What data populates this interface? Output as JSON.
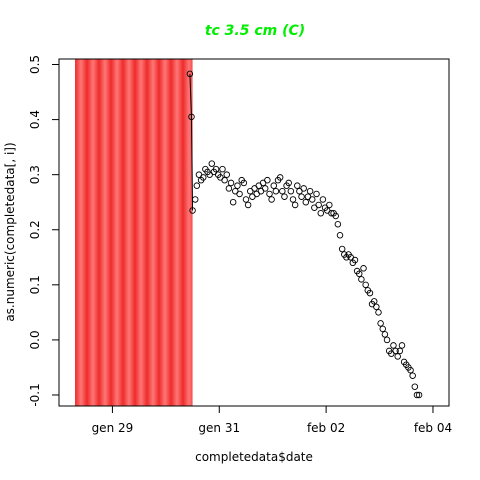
{
  "chart_data": {
    "type": "scatter",
    "title": "tc 3.5 cm (C)",
    "xlabel": "completedata$date",
    "ylabel": "as.numeric(completedata[, i])",
    "x_ticks": [
      "gen 29",
      "gen 31",
      "feb 02",
      "feb 04"
    ],
    "y_ticks": [
      "-0.1",
      "0.0",
      "0.1",
      "0.2",
      "0.3",
      "0.4",
      "0.5"
    ],
    "xlim_days": [
      28.0,
      35.3
    ],
    "ylim": [
      -0.12,
      0.51
    ],
    "shaded_region": {
      "from_day": 28.3,
      "to_day": 30.5,
      "color": "#ff3333"
    },
    "colors": {
      "title": "#00ee00",
      "points": "#000000",
      "band_light": "#ff7777",
      "band_dark": "#ee2b2b"
    },
    "marker": "open-circle",
    "grid": false,
    "points": [
      [
        30.45,
        0.483
      ],
      [
        30.48,
        0.405
      ],
      [
        30.5,
        0.235
      ],
      [
        30.55,
        0.255
      ],
      [
        30.58,
        0.28
      ],
      [
        30.62,
        0.3
      ],
      [
        30.66,
        0.29
      ],
      [
        30.7,
        0.295
      ],
      [
        30.74,
        0.31
      ],
      [
        30.78,
        0.305
      ],
      [
        30.82,
        0.3
      ],
      [
        30.86,
        0.32
      ],
      [
        30.9,
        0.305
      ],
      [
        30.94,
        0.31
      ],
      [
        30.98,
        0.3
      ],
      [
        31.02,
        0.295
      ],
      [
        31.06,
        0.31
      ],
      [
        31.1,
        0.29
      ],
      [
        31.14,
        0.3
      ],
      [
        31.18,
        0.275
      ],
      [
        31.22,
        0.285
      ],
      [
        31.26,
        0.25
      ],
      [
        31.3,
        0.27
      ],
      [
        31.34,
        0.28
      ],
      [
        31.38,
        0.265
      ],
      [
        31.42,
        0.29
      ],
      [
        31.46,
        0.285
      ],
      [
        31.5,
        0.255
      ],
      [
        31.54,
        0.245
      ],
      [
        31.58,
        0.27
      ],
      [
        31.62,
        0.26
      ],
      [
        31.66,
        0.275
      ],
      [
        31.7,
        0.265
      ],
      [
        31.74,
        0.28
      ],
      [
        31.78,
        0.27
      ],
      [
        31.82,
        0.285
      ],
      [
        31.86,
        0.275
      ],
      [
        31.9,
        0.29
      ],
      [
        31.94,
        0.265
      ],
      [
        31.98,
        0.255
      ],
      [
        32.02,
        0.28
      ],
      [
        32.06,
        0.27
      ],
      [
        32.1,
        0.29
      ],
      [
        32.14,
        0.295
      ],
      [
        32.18,
        0.27
      ],
      [
        32.22,
        0.26
      ],
      [
        32.26,
        0.28
      ],
      [
        32.3,
        0.285
      ],
      [
        32.34,
        0.27
      ],
      [
        32.38,
        0.255
      ],
      [
        32.42,
        0.245
      ],
      [
        32.46,
        0.28
      ],
      [
        32.5,
        0.27
      ],
      [
        32.54,
        0.26
      ],
      [
        32.58,
        0.275
      ],
      [
        32.62,
        0.25
      ],
      [
        32.66,
        0.26
      ],
      [
        32.7,
        0.27
      ],
      [
        32.74,
        0.255
      ],
      [
        32.78,
        0.24
      ],
      [
        32.82,
        0.265
      ],
      [
        32.86,
        0.245
      ],
      [
        32.9,
        0.23
      ],
      [
        32.94,
        0.255
      ],
      [
        32.98,
        0.24
      ],
      [
        33.02,
        0.235
      ],
      [
        33.06,
        0.245
      ],
      [
        33.1,
        0.23
      ],
      [
        33.14,
        0.23
      ],
      [
        33.18,
        0.225
      ],
      [
        33.22,
        0.21
      ],
      [
        33.26,
        0.19
      ],
      [
        33.3,
        0.165
      ],
      [
        33.34,
        0.155
      ],
      [
        33.38,
        0.15
      ],
      [
        33.42,
        0.155
      ],
      [
        33.46,
        0.15
      ],
      [
        33.5,
        0.14
      ],
      [
        33.54,
        0.145
      ],
      [
        33.58,
        0.125
      ],
      [
        33.62,
        0.12
      ],
      [
        33.66,
        0.11
      ],
      [
        33.7,
        0.13
      ],
      [
        33.74,
        0.1
      ],
      [
        33.78,
        0.09
      ],
      [
        33.82,
        0.085
      ],
      [
        33.86,
        0.065
      ],
      [
        33.9,
        0.07
      ],
      [
        33.94,
        0.06
      ],
      [
        33.98,
        0.05
      ],
      [
        34.02,
        0.03
      ],
      [
        34.06,
        0.02
      ],
      [
        34.1,
        0.01
      ],
      [
        34.14,
        0.0
      ],
      [
        34.18,
        -0.02
      ],
      [
        34.22,
        -0.025
      ],
      [
        34.26,
        -0.01
      ],
      [
        34.3,
        -0.02
      ],
      [
        34.34,
        -0.03
      ],
      [
        34.38,
        -0.02
      ],
      [
        34.42,
        -0.01
      ],
      [
        34.46,
        -0.04
      ],
      [
        34.5,
        -0.045
      ],
      [
        34.54,
        -0.05
      ],
      [
        34.58,
        -0.055
      ],
      [
        34.62,
        -0.065
      ],
      [
        34.66,
        -0.085
      ],
      [
        34.7,
        -0.1
      ],
      [
        34.74,
        -0.1
      ]
    ]
  }
}
